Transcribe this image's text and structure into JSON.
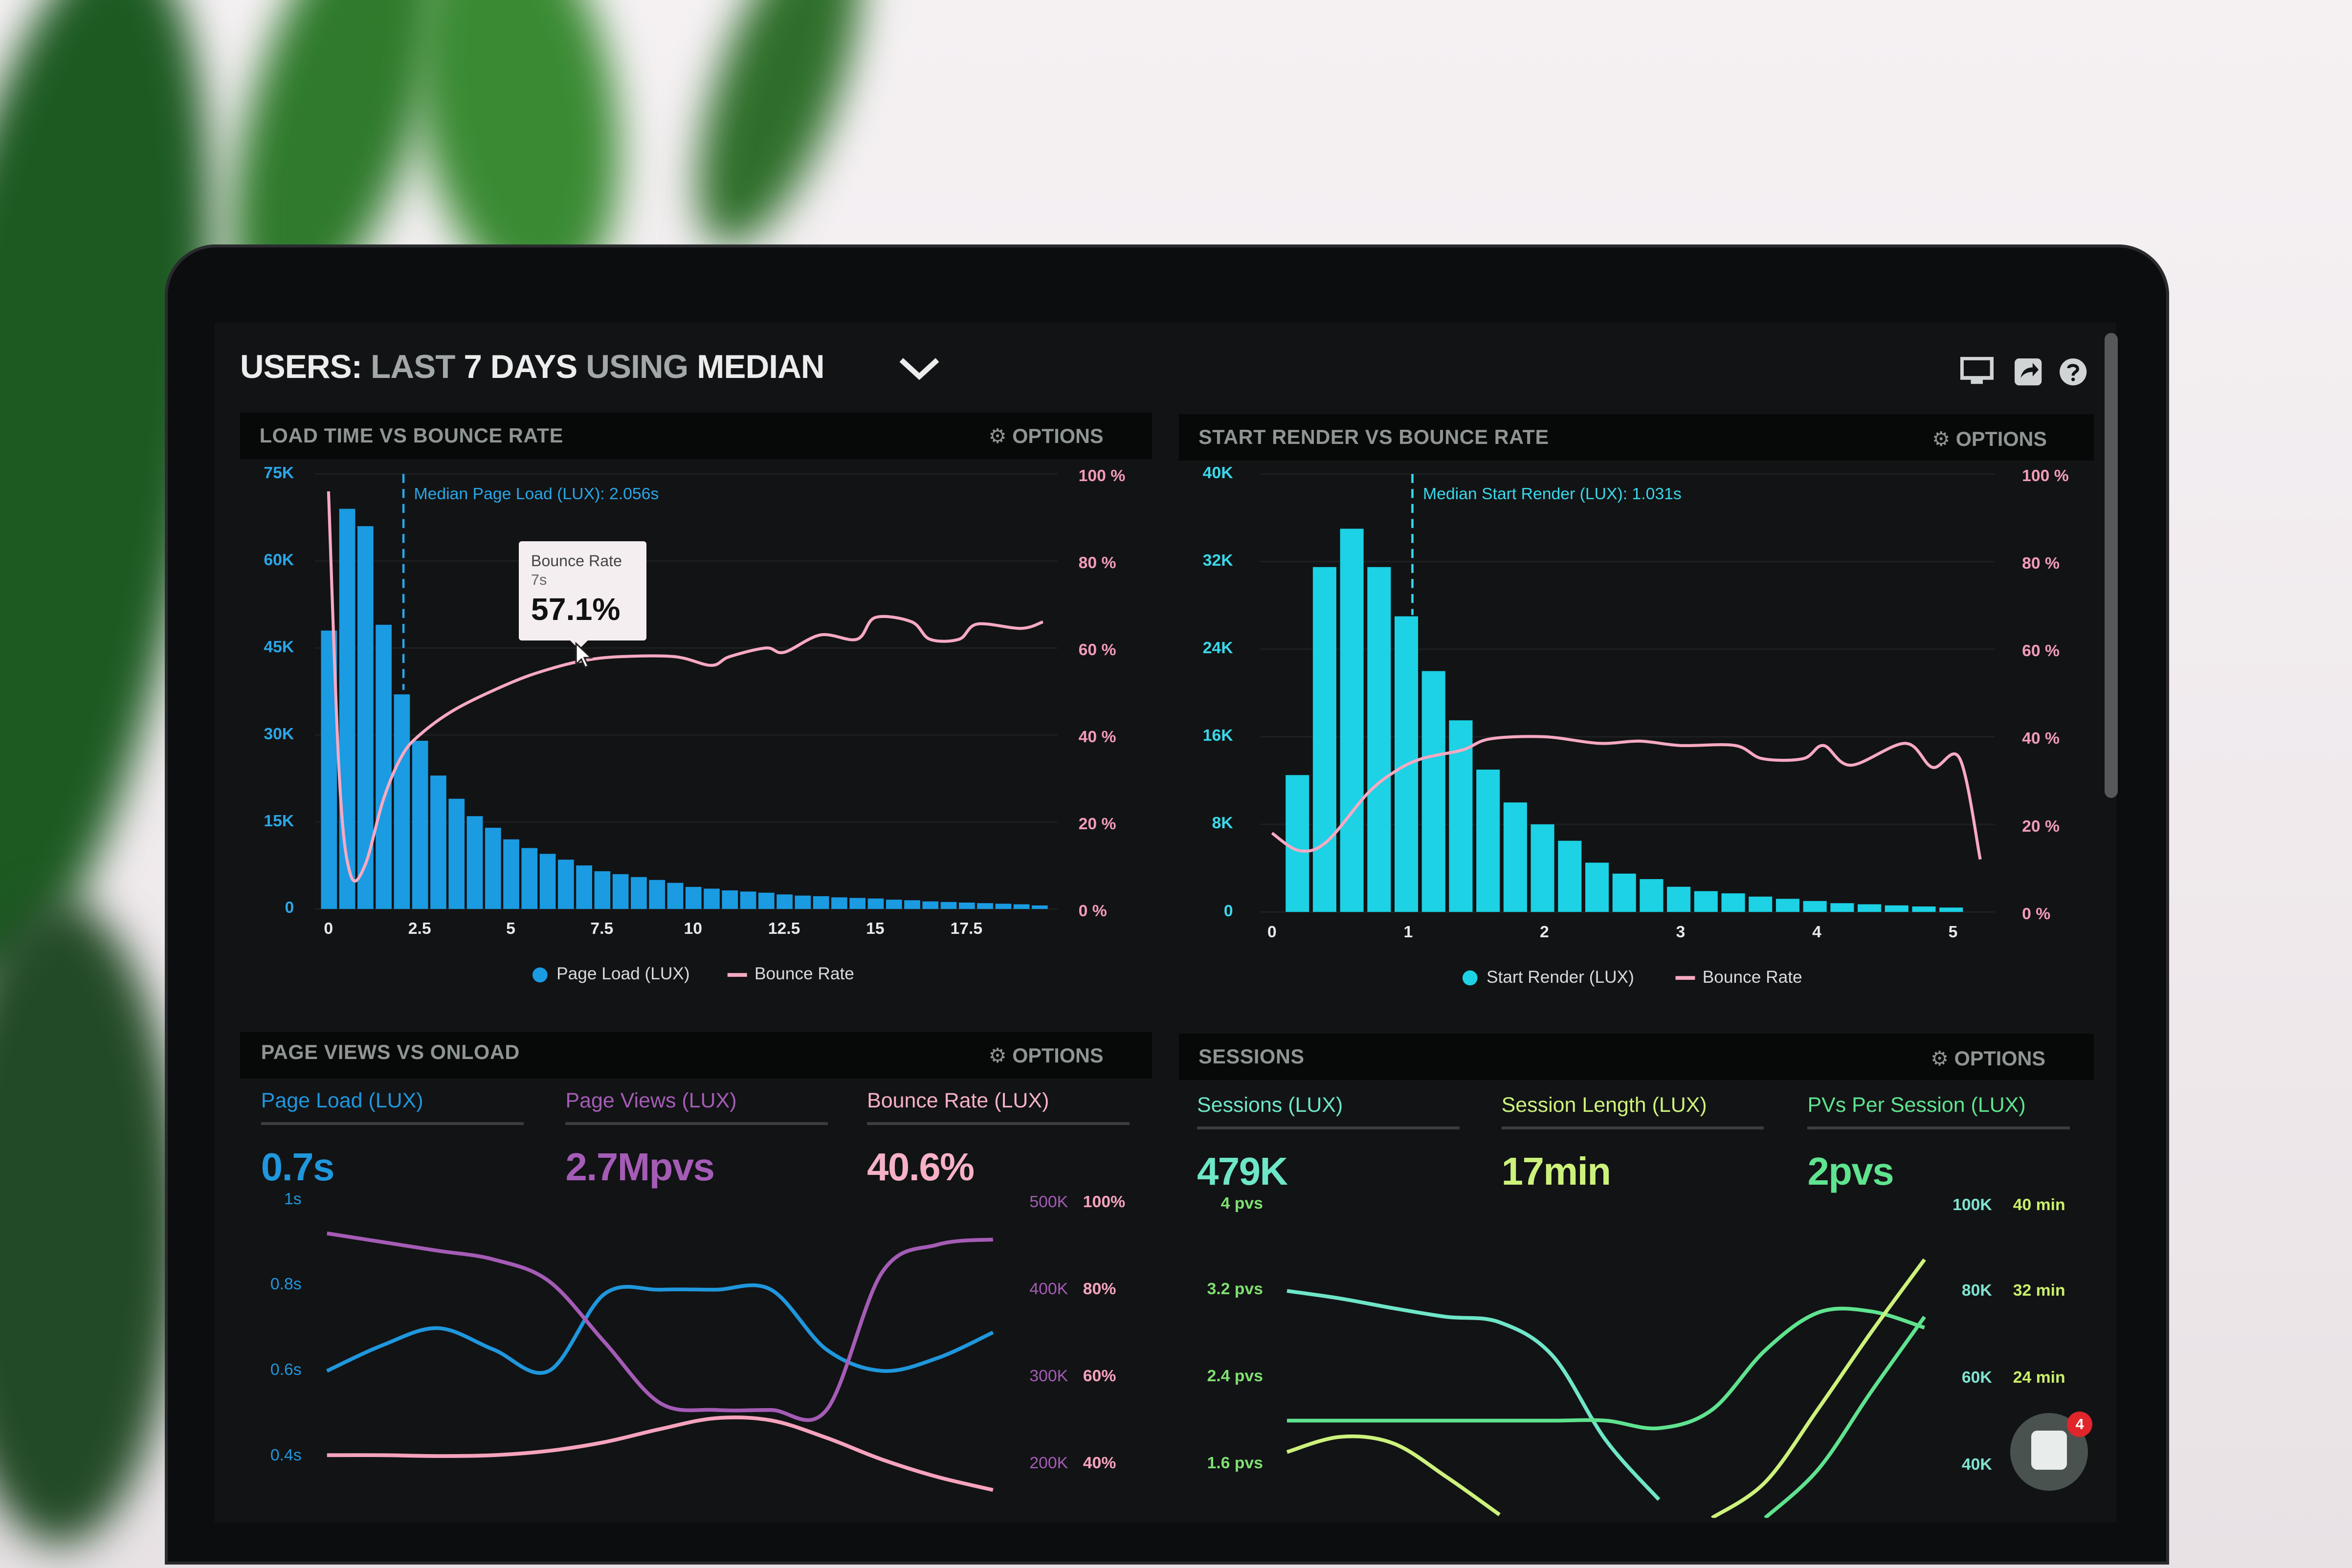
{
  "header": {
    "title_parts": [
      "USERS:",
      "LAST",
      "7 DAYS",
      "USING",
      "MEDIAN"
    ],
    "dropdown_icon": "chevron-down-icon",
    "icons": [
      "monitor-icon",
      "share-icon",
      "help-icon"
    ]
  },
  "panels": [
    {
      "title": "LOAD TIME VS BOUNCE RATE",
      "options_label": "OPTIONS"
    },
    {
      "title": "START RENDER VS BOUNCE RATE",
      "options_label": "OPTIONS"
    },
    {
      "title": "PAGE VIEWS VS ONLOAD",
      "options_label": "OPTIONS"
    },
    {
      "title": "SESSIONS",
      "options_label": "OPTIONS"
    }
  ],
  "metrics": {
    "page_views": [
      {
        "label": "Page Load (LUX)",
        "value": "0.7s",
        "color": "#1f97dd"
      },
      {
        "label": "Page Views (LUX)",
        "value": "2.7Mpvs",
        "color": "#a55cb6"
      },
      {
        "label": "Bounce Rate (LUX)",
        "value": "40.6%",
        "color": "#f6b1c6"
      }
    ],
    "sessions": [
      {
        "label": "Sessions (LUX)",
        "value": "479K",
        "color": "#6ee6c8"
      },
      {
        "label": "Session Length (LUX)",
        "value": "17min",
        "color": "#cdf27c"
      },
      {
        "label": "PVs Per Session (LUX)",
        "value": "2pvs",
        "color": "#5fe38f"
      }
    ]
  },
  "chat": {
    "icon": "chat-icon",
    "badge": "4"
  },
  "chart_data": [
    {
      "type": "bar+line",
      "title": "LOAD TIME VS BOUNCE RATE",
      "x_ticks": [
        "0",
        "2.5",
        "5",
        "7.5",
        "10",
        "12.5",
        "15",
        "17.5"
      ],
      "x_tick_values": [
        0,
        2.5,
        5,
        7.5,
        10,
        12.5,
        15,
        17.5
      ],
      "y_left_ticks": [
        "0",
        "15K",
        "30K",
        "45K",
        "60K",
        "75K"
      ],
      "y_left_range": [
        0,
        75
      ],
      "y_right_ticks": [
        "0 %",
        "20 %",
        "40 %",
        "60 %",
        "80 %",
        "100 %"
      ],
      "y_right_range": [
        0,
        100
      ],
      "bars": {
        "name": "Page Load (LUX)",
        "color": "#1a9be2",
        "bin_width": 0.5,
        "x_start": 0,
        "values": [
          48,
          69,
          66,
          49,
          37,
          29,
          23,
          19,
          16,
          14,
          12,
          10.5,
          9.5,
          8.5,
          7.5,
          6.5,
          6,
          5.5,
          5,
          4.5,
          3.8,
          3.5,
          3.2,
          3,
          2.8,
          2.5,
          2.3,
          2.2,
          2,
          1.9,
          1.8,
          1.6,
          1.5,
          1.3,
          1.2,
          1.1,
          1,
          0.9,
          0.8,
          0.6
        ]
      },
      "line": {
        "name": "Bounce Rate",
        "color": "#f7a9c2",
        "points": [
          [
            0,
            96
          ],
          [
            0.3,
            30
          ],
          [
            0.6,
            8
          ],
          [
            1,
            10
          ],
          [
            1.5,
            25
          ],
          [
            2,
            35
          ],
          [
            2.5,
            40
          ],
          [
            3.5,
            46
          ],
          [
            5,
            52
          ],
          [
            6,
            55
          ],
          [
            7,
            57.1
          ],
          [
            8,
            58
          ],
          [
            9.5,
            58
          ],
          [
            10.5,
            56
          ],
          [
            11,
            58
          ],
          [
            12,
            60
          ],
          [
            12.5,
            59
          ],
          [
            13.5,
            63
          ],
          [
            14.5,
            62
          ],
          [
            15,
            67
          ],
          [
            16,
            66
          ],
          [
            16.5,
            62
          ],
          [
            17.3,
            62
          ],
          [
            17.8,
            65.5
          ],
          [
            19,
            64.5
          ],
          [
            19.6,
            66
          ]
        ]
      },
      "annotation": {
        "label": "Median Page Load (LUX): 2.056s",
        "x": 2.056,
        "color": "#2aa6e6"
      },
      "tooltip": {
        "title": "Bounce Rate",
        "x_label": "7s",
        "value": "57.1%",
        "x": 7
      },
      "legend_position": "bottom",
      "grid": true
    },
    {
      "type": "bar+line",
      "title": "START RENDER VS BOUNCE RATE",
      "x_ticks": [
        "0",
        "1",
        "2",
        "3",
        "4",
        "5"
      ],
      "x_tick_values": [
        0,
        1,
        2,
        3,
        4,
        5
      ],
      "y_left_ticks": [
        "0",
        "8K",
        "16K",
        "24K",
        "32K",
        "40K"
      ],
      "y_left_range": [
        0,
        40
      ],
      "y_right_ticks": [
        "0 %",
        "20 %",
        "40 %",
        "60 %",
        "80 %",
        "100 %"
      ],
      "y_right_range": [
        0,
        100
      ],
      "bars": {
        "name": "Start Render (LUX)",
        "color": "#1cd2e4",
        "bin_width": 0.2,
        "x_start": 0.1,
        "values": [
          12.5,
          31.5,
          35,
          31.5,
          27,
          22,
          17.5,
          13,
          10,
          8,
          6.5,
          4.5,
          3.5,
          3,
          2.3,
          1.9,
          1.7,
          1.4,
          1.2,
          1,
          0.8,
          0.7,
          0.6,
          0.5,
          0.4
        ]
      },
      "line": {
        "name": "Bounce Rate",
        "color": "#f7a9c2",
        "points": [
          [
            0,
            18
          ],
          [
            0.2,
            14
          ],
          [
            0.4,
            16
          ],
          [
            0.7,
            27
          ],
          [
            0.9,
            32
          ],
          [
            1.1,
            35
          ],
          [
            1.4,
            37
          ],
          [
            1.6,
            39.5
          ],
          [
            2,
            40
          ],
          [
            2.4,
            38.5
          ],
          [
            2.7,
            39
          ],
          [
            3,
            38
          ],
          [
            3.4,
            38
          ],
          [
            3.6,
            35
          ],
          [
            3.9,
            35
          ],
          [
            4.05,
            38
          ],
          [
            4.25,
            33.5
          ],
          [
            4.65,
            38.5
          ],
          [
            4.85,
            33
          ],
          [
            5.05,
            35
          ],
          [
            5.2,
            12
          ]
        ]
      },
      "annotation": {
        "label": "Median Start Render (LUX): 1.031s",
        "x": 1.031,
        "color": "#3ad8ea"
      },
      "legend_position": "bottom",
      "grid": true
    },
    {
      "type": "line",
      "title": "PAGE VIEWS VS ONLOAD",
      "y_left_ticks": [
        "0.4s",
        "0.6s",
        "0.8s",
        "1s"
      ],
      "y_left_range": [
        0.4,
        1
      ],
      "y_right_ticks_views": [
        "200K",
        "300K",
        "400K",
        "500K"
      ],
      "y_right_ticks_bounce": [
        "40%",
        "60%",
        "80%",
        "100%"
      ],
      "series": [
        {
          "axis": "left",
          "unit": "s",
          "color": "#1f97dd",
          "values": [
            0.6,
            0.66,
            0.7,
            0.65,
            0.6,
            0.78,
            0.79,
            0.79,
            0.79,
            0.65,
            0.6,
            0.63,
            0.69
          ]
        },
        {
          "axis": "views",
          "unit": "K",
          "color": "#a55cb6",
          "values": [
            465,
            455,
            445,
            435,
            410,
            340,
            270,
            262,
            262,
            262,
            420,
            452,
            458
          ]
        },
        {
          "axis": "bounce",
          "unit": "%",
          "color": "#f6a3bd",
          "values": [
            42,
            42,
            41.8,
            42,
            43,
            45,
            48,
            50.5,
            50,
            46,
            41,
            37,
            34
          ]
        }
      ],
      "grid": true
    },
    {
      "type": "line",
      "title": "SESSIONS",
      "y_left_ticks": [
        "1.6 pvs",
        "2.4 pvs",
        "3.2 pvs",
        "4 pvs"
      ],
      "y_left_range": [
        1.6,
        4
      ],
      "y_right_ticks_sessions": [
        "40K",
        "60K",
        "80K",
        "100K"
      ],
      "y_right_ticks_length": [
        "24 min",
        "32 min",
        "40 min"
      ],
      "series": [
        {
          "color": "#6ee6c8",
          "values": [
            3.2,
            3.13,
            3.04,
            2.96,
            2.91,
            2.6,
            1.82,
            1.27,
            null,
            null,
            null,
            null,
            null
          ]
        },
        {
          "color": "#5fe38f",
          "values": [
            2.0,
            2.0,
            2.0,
            2.0,
            2.0,
            2.0,
            2.0,
            1.93,
            2.1,
            2.65,
            3.0,
            3.01,
            2.86
          ]
        },
        {
          "color": "#cdf27c",
          "values": [
            1.71,
            1.85,
            1.79,
            1.48,
            1.13,
            null,
            null,
            null,
            null,
            null,
            null,
            null,
            null
          ]
        },
        {
          "color": "#cdf27c",
          "values": [
            null,
            null,
            null,
            null,
            null,
            null,
            null,
            null,
            1.1,
            1.43,
            2.11,
            2.82,
            3.49
          ]
        },
        {
          "color": "#5fe38f",
          "values": [
            null,
            null,
            null,
            null,
            null,
            null,
            null,
            null,
            null,
            1.1,
            1.55,
            2.27,
            2.96
          ]
        }
      ],
      "grid": true
    }
  ]
}
